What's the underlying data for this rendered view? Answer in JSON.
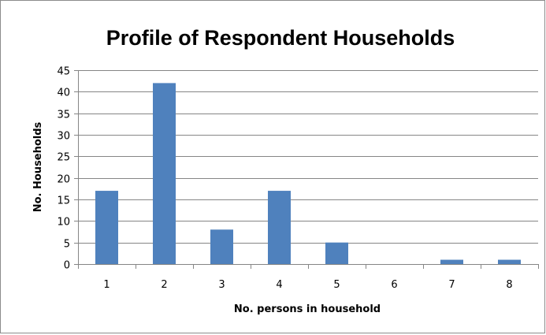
{
  "chart_data": {
    "type": "bar",
    "title": "Profile of Respondent Households",
    "xlabel": "No. persons in household",
    "ylabel": "No. Households",
    "categories": [
      "1",
      "2",
      "3",
      "4",
      "5",
      "6",
      "7",
      "8"
    ],
    "values": [
      17,
      42,
      8,
      17,
      5,
      0,
      1,
      1
    ],
    "ylim": [
      0,
      45
    ],
    "yticks": [
      "0",
      "5",
      "10",
      "15",
      "20",
      "25",
      "30",
      "35",
      "40",
      "45"
    ],
    "grid": true,
    "legend": "none",
    "bar_color": "#4f81bd",
    "grid_color": "#868686"
  }
}
